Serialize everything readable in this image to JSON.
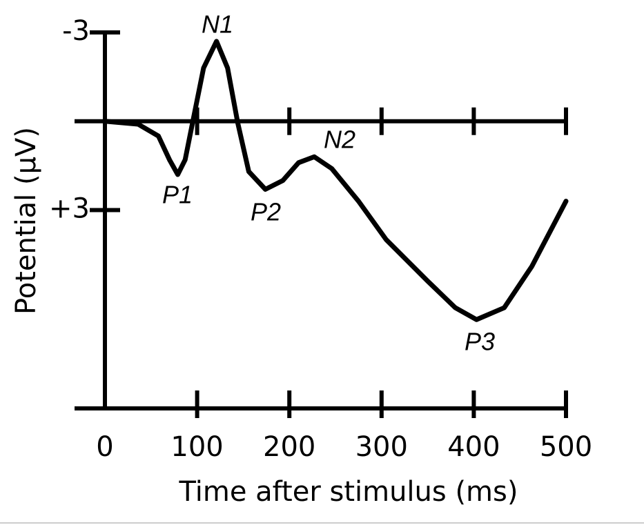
{
  "chart_data": {
    "type": "line",
    "x_label": "Time after stimulus (ms)",
    "y_label": "Potential (µV)",
    "x": [
      0,
      36,
      58,
      70,
      79,
      87,
      96,
      107,
      121,
      133,
      144,
      156,
      174,
      193,
      210,
      227,
      246,
      275,
      305,
      350,
      380,
      403,
      433,
      463,
      500
    ],
    "series": [
      {
        "color": "#000000",
        "values": [
          0,
          0.1,
          0.5,
          1.3,
          1.8,
          1.3,
          -0.1,
          -1.8,
          -2.7,
          -1.8,
          0.05,
          1.7,
          2.3,
          2.0,
          1.4,
          1.2,
          1.6,
          2.7,
          4.0,
          5.4,
          6.3,
          6.7,
          6.3,
          4.9,
          2.7
        ]
      }
    ],
    "annotations": [
      "N1",
      "P1",
      "P2",
      "N2",
      "P3"
    ],
    "xlim": [
      0,
      500
    ],
    "xticks": [
      0,
      100,
      200,
      300,
      400,
      500
    ],
    "ylim": [
      -3,
      9.7
    ],
    "yticks": [
      -3,
      {
        "value": 3,
        "label": "+3"
      }
    ],
    "y_inverted": true,
    "grid": false
  }
}
